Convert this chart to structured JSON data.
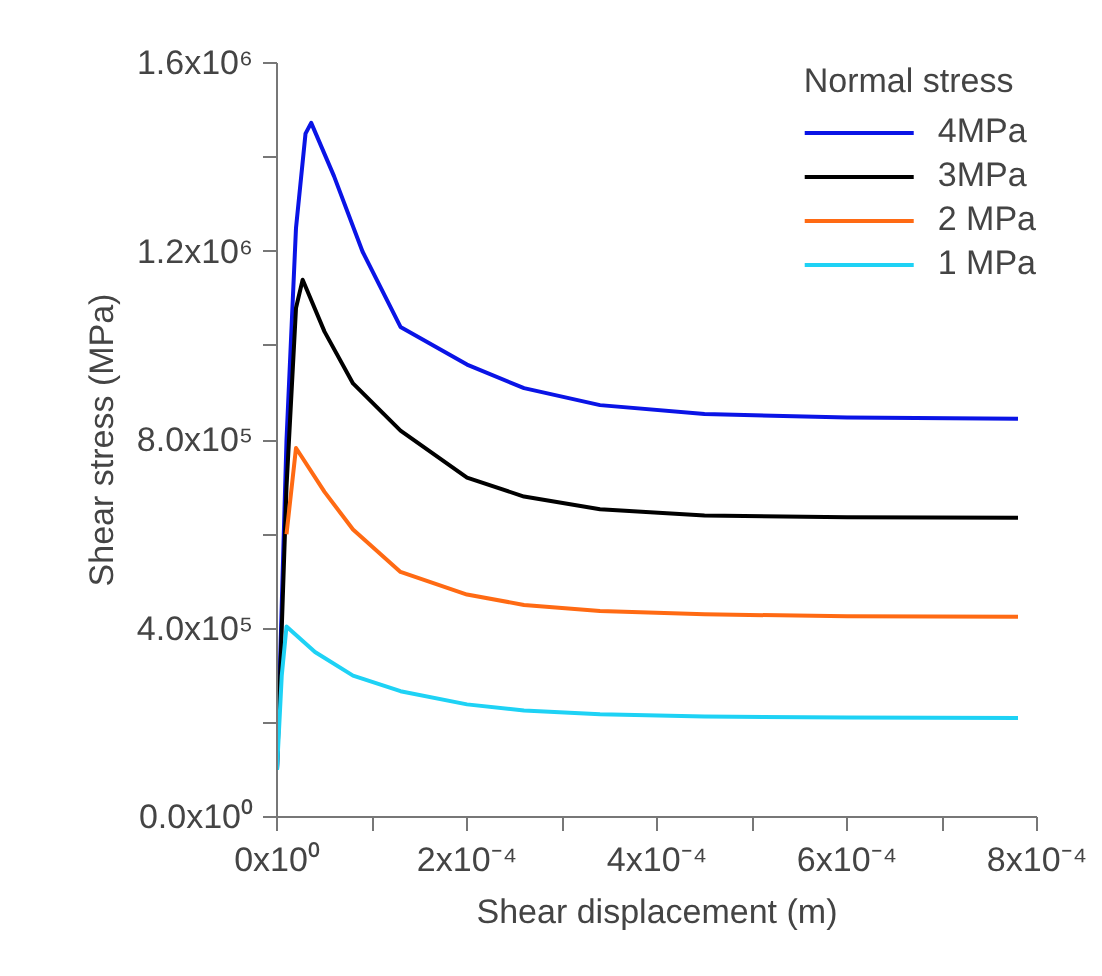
{
  "chart_data": {
    "type": "line",
    "xlabel": "Shear displacement (m)",
    "ylabel": "Shear stress (MPa)",
    "legend_title": "Normal stress",
    "legend": "top right",
    "grid": false,
    "marker": "none",
    "line_style": "solid",
    "xlim": [
      0,
      0.0008
    ],
    "ylim": [
      0,
      1600000
    ],
    "xticks": [
      {
        "value": 0,
        "label": "0x10⁰"
      },
      {
        "value": 0.0001,
        "label": null
      },
      {
        "value": 0.0002,
        "label": "2x10⁻⁴"
      },
      {
        "value": 0.0003,
        "label": null
      },
      {
        "value": 0.0004,
        "label": "4x10⁻⁴"
      },
      {
        "value": 0.0005,
        "label": null
      },
      {
        "value": 0.0006,
        "label": "6x10⁻⁴"
      },
      {
        "value": 0.0007,
        "label": null
      },
      {
        "value": 0.0008,
        "label": "8x10⁻⁴"
      }
    ],
    "yticks": [
      {
        "value": 0,
        "label": "0.0x10⁰"
      },
      {
        "value": 200000,
        "label": null
      },
      {
        "value": 400000,
        "label": "4.0x10⁵"
      },
      {
        "value": 600000,
        "label": null
      },
      {
        "value": 800000,
        "label": "8.0x10⁵"
      },
      {
        "value": 1000000,
        "label": null
      },
      {
        "value": 1200000,
        "label": "1.2x10⁶"
      },
      {
        "value": 1400000,
        "label": null
      },
      {
        "value": 1600000,
        "label": "1.6x10⁶"
      }
    ],
    "series": [
      {
        "name": "4MPa",
        "color": "#0a14e6",
        "x": [
          0,
          1e-05,
          2e-05,
          3e-05,
          3.6e-05,
          6e-05,
          9e-05,
          0.00013,
          0.0002,
          0.00026,
          0.00034,
          0.00045,
          0.0006,
          0.00078
        ],
        "values": [
          100000,
          800000,
          1250000,
          1450000,
          1473000,
          1360000,
          1200000,
          1040000,
          960000,
          910000,
          874000,
          855000,
          848000,
          845000
        ]
      },
      {
        "name": "3MPa",
        "color": "#000000",
        "x": [
          0,
          1e-05,
          2e-05,
          2.7e-05,
          5e-05,
          8e-05,
          0.00013,
          0.0002,
          0.00026,
          0.00034,
          0.00045,
          0.0006,
          0.00078
        ],
        "values": [
          100000,
          700000,
          1080000,
          1140000,
          1030000,
          920000,
          820000,
          720000,
          680000,
          653000,
          640000,
          636000,
          635000
        ]
      },
      {
        "name": "2 MPa",
        "color": "#ff6a13",
        "x": [
          1e-05,
          2e-05,
          5e-05,
          8e-05,
          0.00013,
          0.0002,
          0.00026,
          0.00034,
          0.00045,
          0.0006,
          0.00078
        ],
        "values": [
          600000,
          783000,
          690000,
          610000,
          520000,
          472000,
          450000,
          437000,
          430000,
          426000,
          425000
        ]
      },
      {
        "name": "1 MPa",
        "color": "#1ed2f5",
        "x": [
          0,
          5e-06,
          1e-05,
          4e-05,
          8e-05,
          0.00013,
          0.0002,
          0.00026,
          0.00034,
          0.00045,
          0.0006,
          0.00078
        ],
        "values": [
          100000,
          300000,
          404000,
          350000,
          300000,
          267000,
          239000,
          226000,
          218000,
          213000,
          211000,
          210000
        ]
      }
    ]
  }
}
